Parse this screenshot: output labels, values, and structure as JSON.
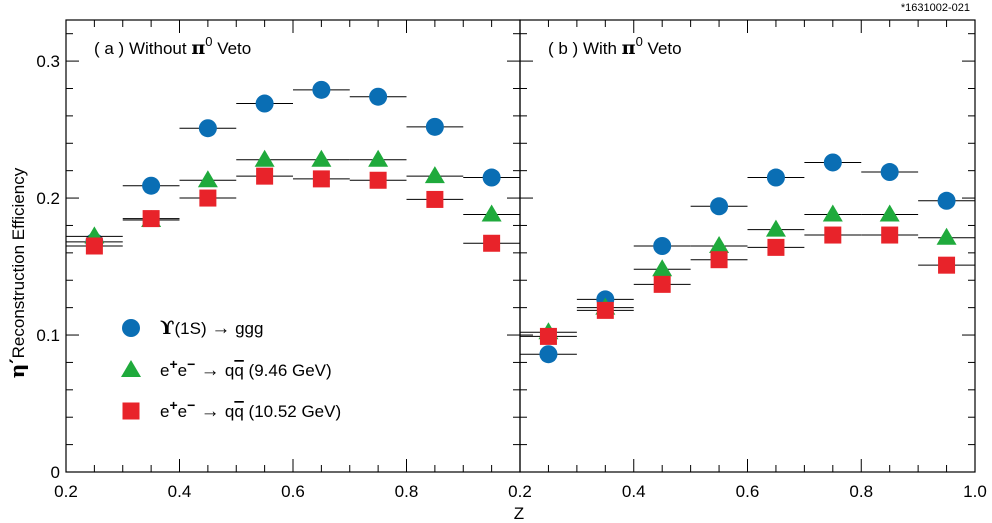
{
  "figure_id": "*1631002-021",
  "chart_data": {
    "type": "scatter",
    "xlabel": "Z",
    "ylabel": "Reconstruction Efficiency",
    "ylabel_symbol": "η′",
    "ylim": [
      0,
      0.33
    ],
    "yticks": [
      "0",
      "0.1",
      "0.2",
      "0.3"
    ],
    "grid": false,
    "legend_position": "lower-left of panel (a)",
    "legend": [
      {
        "marker": "circle",
        "color": "#0a6eb4",
        "parts": [
          "ϒ",
          "(1S)",
          "→",
          "ggg"
        ]
      },
      {
        "marker": "triangle",
        "color": "#1faa3c",
        "parts": [
          "e",
          "+",
          "e",
          "−",
          "→",
          "q",
          "q",
          "(9.46 GeV)"
        ]
      },
      {
        "marker": "square",
        "color": "#e8232a",
        "parts": [
          "e",
          "+",
          "e",
          "−",
          "→",
          "q",
          "q",
          "(10.52 GeV)"
        ]
      }
    ],
    "panels": [
      {
        "label_prefix": "( a )  Without ",
        "label_symbol": "π",
        "label_sup": "0",
        "label_suffix": " Veto",
        "xlim": [
          0.2,
          1.0
        ],
        "xticks": [
          "0.2",
          "0.4",
          "0.6",
          "0.8"
        ],
        "x": [
          0.25,
          0.35,
          0.45,
          0.55,
          0.65,
          0.75,
          0.85,
          0.95
        ],
        "series": [
          {
            "marker": "circle",
            "color": "#0a6eb4",
            "values": [
              0.168,
              0.209,
              0.251,
              0.269,
              0.279,
              0.274,
              0.252,
              0.215
            ]
          },
          {
            "marker": "triangle",
            "color": "#1faa3c",
            "values": [
              0.172,
              0.184,
              0.213,
              0.228,
              0.228,
              0.228,
              0.216,
              0.188
            ]
          },
          {
            "marker": "square",
            "color": "#e8232a",
            "values": [
              0.165,
              0.185,
              0.2,
              0.216,
              0.214,
              0.213,
              0.199,
              0.167
            ]
          }
        ]
      },
      {
        "label_prefix": "( b )  With ",
        "label_symbol": "π",
        "label_sup": "0",
        "label_suffix": " Veto",
        "xlim": [
          0.2,
          1.0
        ],
        "xticks": [
          "0.2",
          "0.4",
          "0.6",
          "0.8",
          "1.0"
        ],
        "x": [
          0.25,
          0.35,
          0.45,
          0.55,
          0.65,
          0.75,
          0.85,
          0.95
        ],
        "series": [
          {
            "marker": "circle",
            "color": "#0a6eb4",
            "values": [
              0.086,
              0.126,
              0.165,
              0.194,
              0.215,
              0.226,
              0.219,
              0.198
            ]
          },
          {
            "marker": "triangle",
            "color": "#1faa3c",
            "values": [
              0.102,
              0.12,
              0.148,
              0.165,
              0.177,
              0.188,
              0.188,
              0.171
            ]
          },
          {
            "marker": "square",
            "color": "#e8232a",
            "values": [
              0.099,
              0.118,
              0.137,
              0.155,
              0.164,
              0.173,
              0.173,
              0.151
            ]
          }
        ]
      }
    ]
  }
}
